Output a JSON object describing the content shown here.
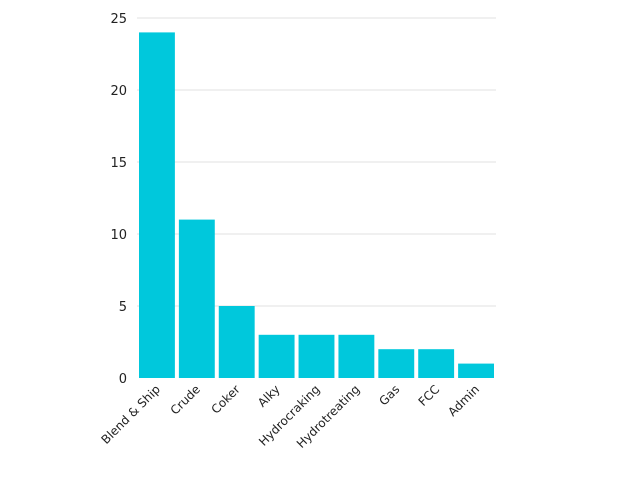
{
  "chart_data": {
    "type": "bar",
    "title": "",
    "xlabel": "",
    "ylabel": "",
    "categories": [
      "Blend & Ship",
      "Crude",
      "Coker",
      "Alky",
      "Hydrocraking",
      "Hydrotreating",
      "Gas",
      "FCC",
      "Admin"
    ],
    "values": [
      24,
      11,
      5,
      3,
      3,
      3,
      2,
      2,
      1
    ],
    "ylim": [
      0,
      25
    ],
    "yticks": [
      0,
      5,
      10,
      15,
      20,
      25
    ],
    "grid": true,
    "legend": "none",
    "colors": {
      "bar": "#00C8DC",
      "grid": "#e2e2e2"
    }
  }
}
